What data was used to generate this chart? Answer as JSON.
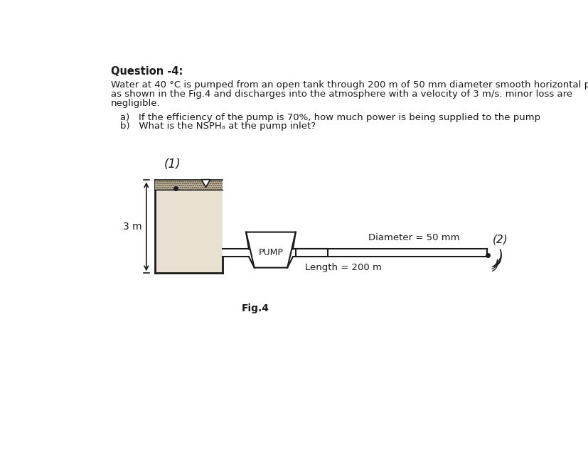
{
  "title": "Question -4:",
  "desc1": "Water at 40 °C is pumped from an open tank through 200 m of 50 mm diameter smooth horizontal pipe",
  "desc2": "as shown in the Fig.4 and discharges into the atmosphere with a velocity of 3 m/s. minor loss are",
  "desc3": "negligible.",
  "qa": "a)   If the efficiency of the pump is 70%, how much power is being supplied to the pump",
  "qb": "b)   What is the NSPHₐ at the pump inlet?",
  "fig_label": "Fig.4",
  "label_3m": "3 m",
  "label_diameter": "Diameter = 50 mm",
  "label_length": "Length = 200 m",
  "label_pump": "PUMP",
  "label_1": "(1)",
  "label_2": "(2)",
  "bg_color": "#ffffff",
  "text_color": "#1a1a1a",
  "hatch_color": "#555555",
  "tank_interior_color": "#e8e0d0",
  "pipe_lw": 1.5,
  "tank_lw": 2.0
}
